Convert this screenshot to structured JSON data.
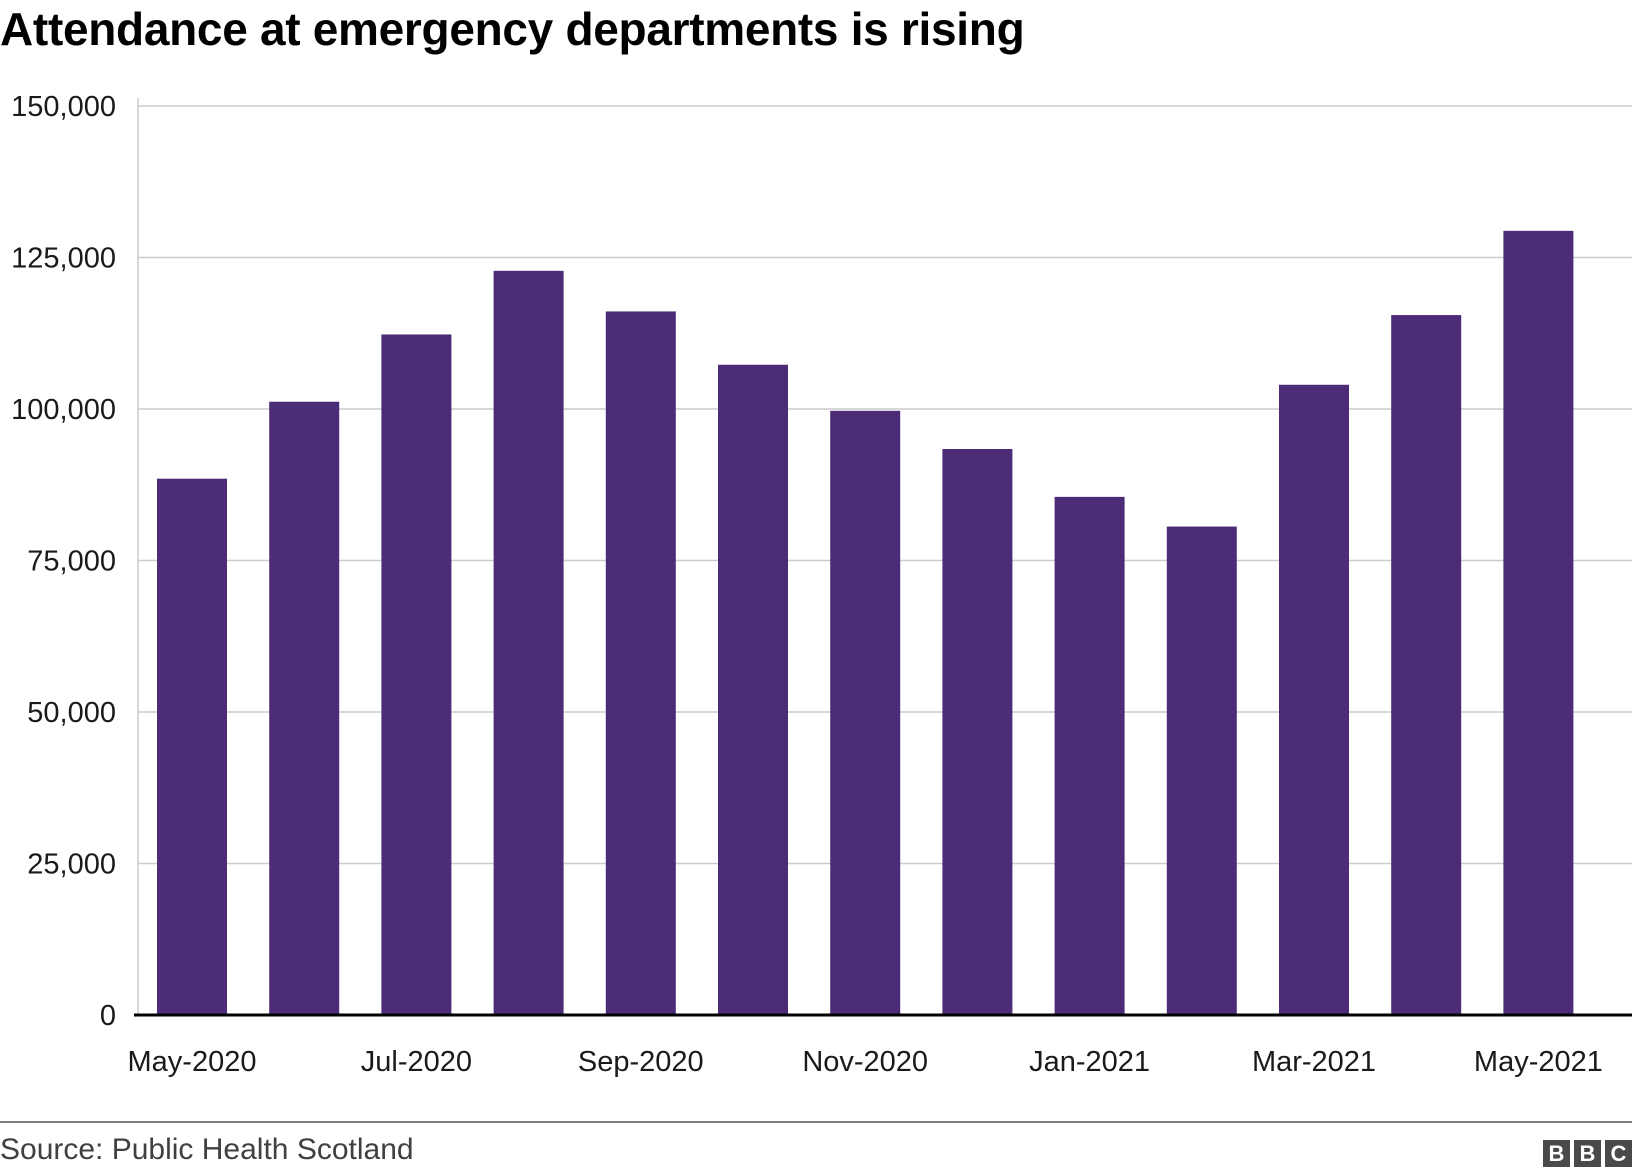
{
  "chart_data": {
    "type": "bar",
    "title": "Attendance at emergency departments is rising",
    "categories": [
      "May-2020",
      "Jun-2020",
      "Jul-2020",
      "Aug-2020",
      "Sep-2020",
      "Oct-2020",
      "Nov-2020",
      "Dec-2020",
      "Jan-2021",
      "Feb-2021",
      "Mar-2021",
      "Apr-2021",
      "May-2021"
    ],
    "tick_labels": [
      "May-2020",
      "",
      "Jul-2020",
      "",
      "Sep-2020",
      "",
      "Nov-2020",
      "",
      "Jan-2021",
      "",
      "Mar-2021",
      "",
      "May-2021"
    ],
    "values": [
      88500,
      101200,
      112300,
      122800,
      116100,
      107300,
      99700,
      93400,
      85500,
      80600,
      104000,
      115500,
      129400
    ],
    "ylim": [
      0,
      150000
    ],
    "yticks": [
      0,
      25000,
      50000,
      75000,
      100000,
      125000,
      150000
    ],
    "ytick_labels": [
      "0",
      "25,000",
      "50,000",
      "75,000",
      "100,000",
      "125,000",
      "150,000"
    ],
    "xlabel": "",
    "ylabel": "",
    "grid": true,
    "bar_color": "#4d2c77",
    "grid_color": "#cccccc",
    "axis_color": "#000000"
  },
  "footer": {
    "source": "Source: Public Health Scotland",
    "logo_letters": [
      "B",
      "B",
      "C"
    ]
  }
}
